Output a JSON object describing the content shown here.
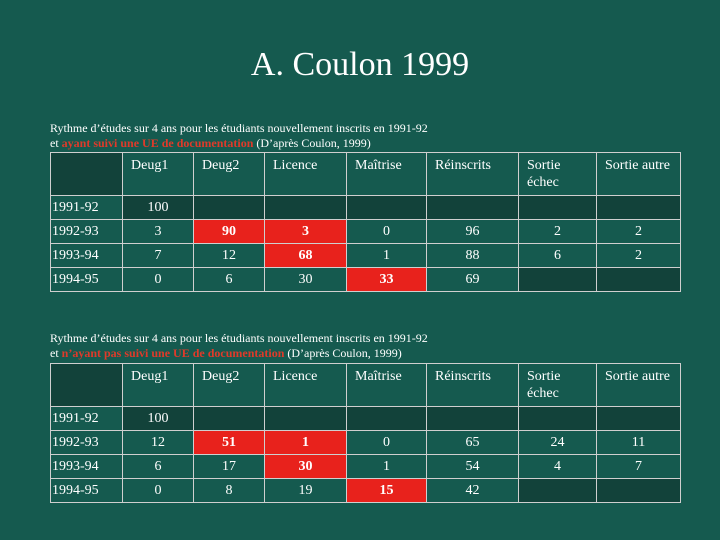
{
  "title": "A. Coulon 1999",
  "table1": {
    "caption_line1": "Rythme d’études sur 4 ans pour les étudiants nouvellement inscrits en 1991-92",
    "caption_prefix": "et ",
    "caption_highlight": "ayant suivi une UE de documentation",
    "caption_suffix": " (D’après Coulon, 1999)",
    "headers": [
      "",
      "Deug1",
      "Deug2",
      "Licence",
      "Maîtrise",
      "Réinscrits",
      "Sortie échec",
      "Sortie autre"
    ],
    "rows": [
      [
        "1991-92",
        "100",
        "",
        "",
        "",
        "",
        "",
        ""
      ],
      [
        "1992-93",
        "3",
        "90",
        "3",
        "0",
        "96",
        "2",
        "2"
      ],
      [
        "1993-94",
        "7",
        "12",
        "68",
        "1",
        "88",
        "6",
        "2"
      ],
      [
        "1994-95",
        "0",
        "6",
        "30",
        "33",
        "69",
        "",
        ""
      ]
    ]
  },
  "table2": {
    "caption_line1": "Rythme d’études sur 4 ans pour les étudiants nouvellement inscrits en 1991-92",
    "caption_prefix": "et ",
    "caption_highlight": "n’ayant pas suivi une UE de documentation",
    "caption_suffix": " (D’après Coulon, 1999)",
    "headers": [
      "",
      "Deug1",
      "Deug2",
      "Licence",
      "Maîtrise",
      "Réinscrits",
      "Sortie échec",
      "Sortie autre"
    ],
    "rows": [
      [
        "1991-92",
        "100",
        "",
        "",
        "",
        "",
        "",
        ""
      ],
      [
        "1992-93",
        "12",
        "51",
        "1",
        "0",
        "65",
        "24",
        "11"
      ],
      [
        "1993-94",
        "6",
        "17",
        "30",
        "1",
        "54",
        "4",
        "7"
      ],
      [
        "1994-95",
        "0",
        "8",
        "19",
        "15",
        "42",
        "",
        ""
      ]
    ]
  },
  "colors": {
    "background": "#155a4f",
    "highlight_cell": "#e8221c",
    "dark_cell": "#12423a",
    "caption_highlight": "#e03a2a"
  }
}
